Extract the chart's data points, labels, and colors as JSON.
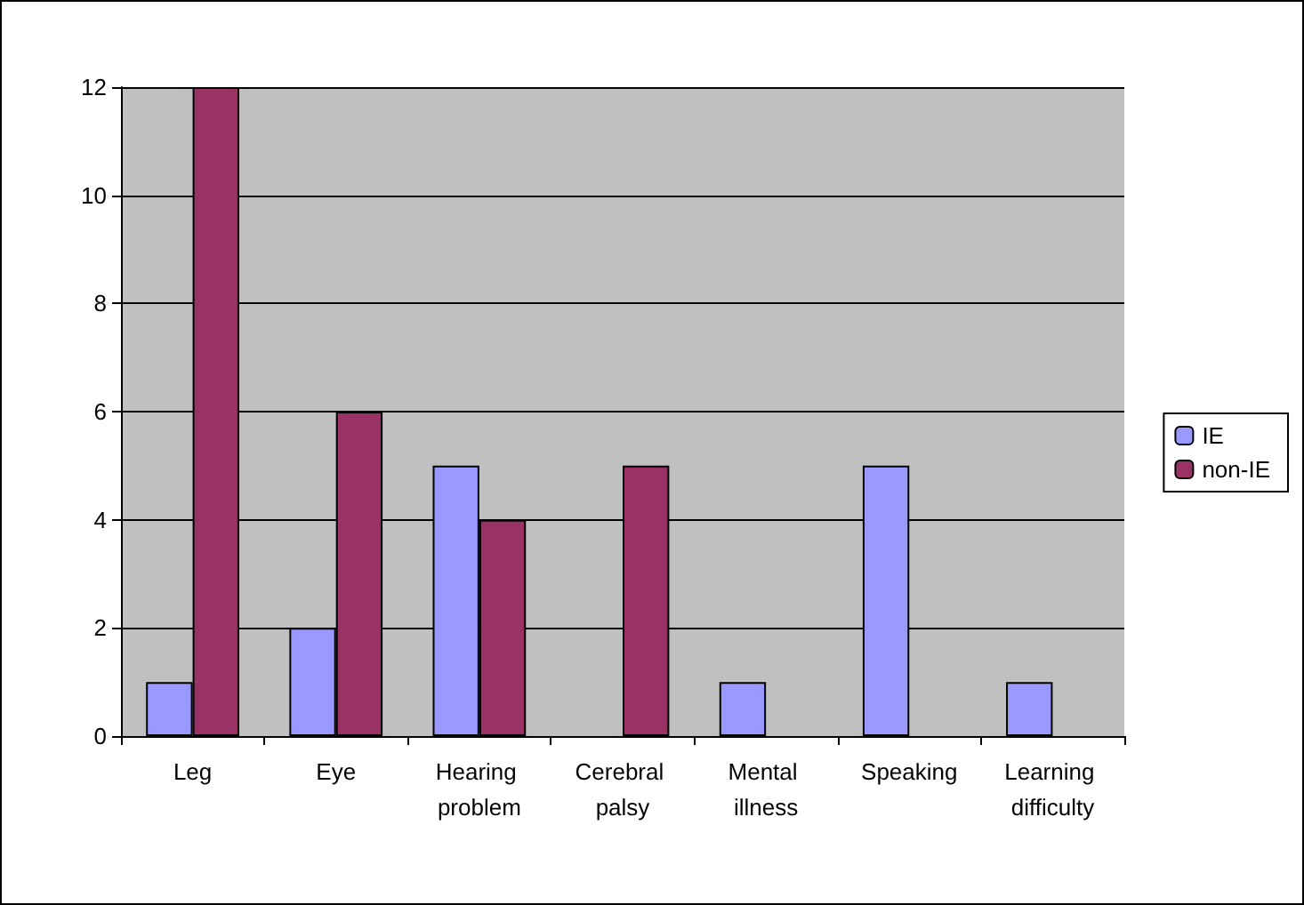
{
  "chart_data": {
    "type": "bar",
    "categories": [
      "Leg",
      "Eye",
      "Hearing problem",
      "Cerebral palsy",
      "Mental illness",
      "Speaking",
      "Learning difficulty"
    ],
    "series": [
      {
        "name": "IE",
        "color": "#9999ff",
        "values": [
          1,
          2,
          5,
          0,
          1,
          5,
          1
        ]
      },
      {
        "name": "non-IE",
        "color": "#993366",
        "values": [
          12,
          6,
          4,
          5,
          0,
          0,
          0
        ]
      }
    ],
    "ylim": [
      0,
      12
    ],
    "yticks": [
      0,
      2,
      4,
      6,
      8,
      10,
      12
    ],
    "grid": "y",
    "legend": "right"
  }
}
